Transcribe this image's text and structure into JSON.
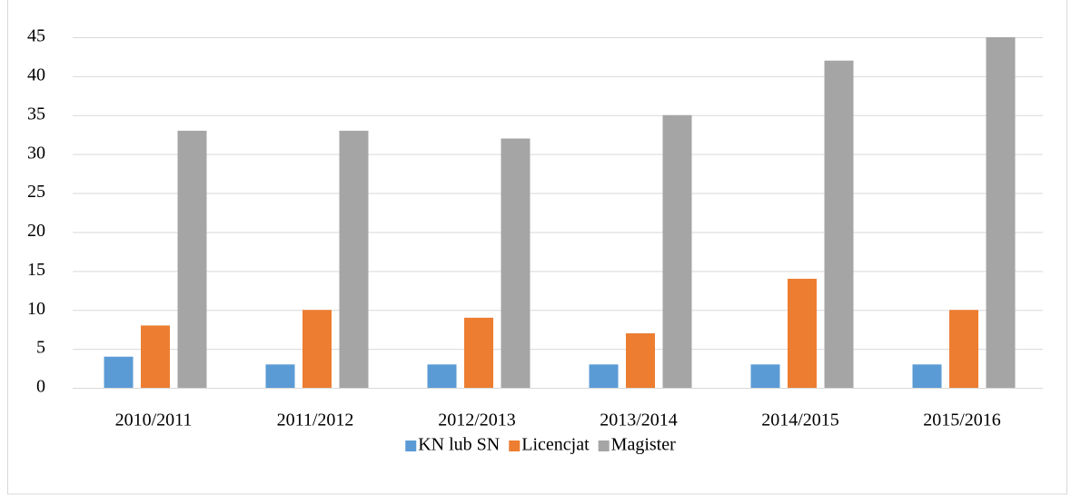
{
  "chart_data": {
    "type": "bar",
    "categories": [
      "2010/2011",
      "2011/2012",
      "2012/2013",
      "2013/2014",
      "2014/2015",
      "2015/2016"
    ],
    "series": [
      {
        "name": "KN lub SN",
        "color": "#5b9bd5",
        "values": [
          4,
          3,
          3,
          3,
          3,
          3
        ]
      },
      {
        "name": "Licencjat",
        "color": "#ed7d31",
        "values": [
          8,
          10,
          9,
          7,
          14,
          10
        ]
      },
      {
        "name": "Magister",
        "color": "#a5a5a5",
        "values": [
          33,
          33,
          32,
          35,
          42,
          45
        ]
      }
    ],
    "ylim": [
      0,
      45
    ],
    "yticks": [
      0,
      5,
      10,
      15,
      20,
      25,
      30,
      35,
      40,
      45
    ],
    "grid": true,
    "legend": "bottom"
  }
}
